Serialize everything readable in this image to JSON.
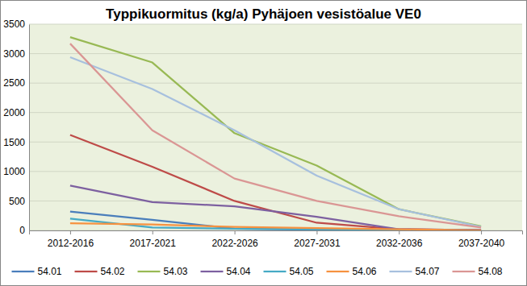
{
  "chart_data": {
    "type": "line",
    "title": "Typpikuormitus (kg/a) Pyhäjoen vesistöalue VE0",
    "categories": [
      "2012-2016",
      "2017-2021",
      "2022-2026",
      "2027-2031",
      "2032-2036",
      "2037-2040"
    ],
    "series": [
      {
        "name": "54.01",
        "color": "#4a7ebb",
        "values": [
          320,
          180,
          30,
          10,
          5,
          0
        ]
      },
      {
        "name": "54.02",
        "color": "#be4b48",
        "values": [
          1620,
          1080,
          500,
          130,
          20,
          5
        ]
      },
      {
        "name": "54.03",
        "color": "#98b954",
        "values": [
          3280,
          2850,
          1650,
          1100,
          360,
          70
        ]
      },
      {
        "name": "54.04",
        "color": "#7d60a0",
        "values": [
          760,
          480,
          410,
          230,
          20,
          5
        ]
      },
      {
        "name": "54.05",
        "color": "#46aac5",
        "values": [
          200,
          50,
          30,
          20,
          10,
          0
        ]
      },
      {
        "name": "54.06",
        "color": "#f69240",
        "values": [
          120,
          100,
          60,
          40,
          20,
          0
        ]
      },
      {
        "name": "54.07",
        "color": "#a7c0de",
        "values": [
          2940,
          2400,
          1700,
          930,
          360,
          60
        ]
      },
      {
        "name": "54.08",
        "color": "#da9694",
        "values": [
          3170,
          1700,
          880,
          500,
          240,
          50
        ]
      }
    ],
    "ylim": [
      0,
      3500
    ],
    "yticks": [
      0,
      500,
      1000,
      1500,
      2000,
      2500,
      3000,
      3500
    ],
    "grid": true,
    "legend": "bottom"
  }
}
